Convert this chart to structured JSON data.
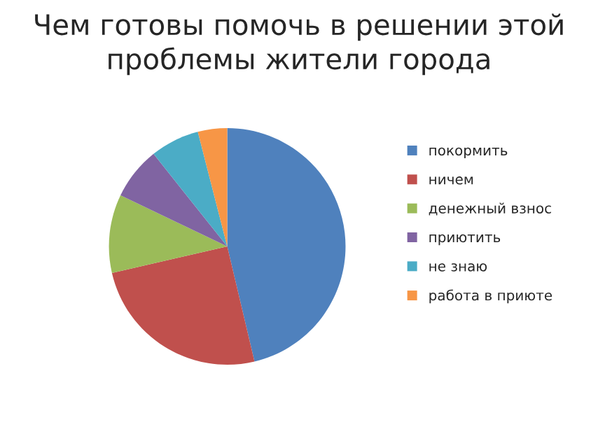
{
  "chart_data": {
    "type": "pie",
    "title": "Чем готовы помочь в решении этой\nпроблемы жители города",
    "categories": [
      "покормить",
      "ничем",
      "денежный взнос",
      "приютить",
      "не знаю",
      "работа в приюте"
    ],
    "values": [
      46.3,
      25.1,
      10.7,
      7.2,
      6.7,
      4.0
    ],
    "colors": [
      "#4f81bd",
      "#c0504d",
      "#9bbb59",
      "#8064a2",
      "#4bacc6",
      "#f79646"
    ],
    "legend": "right"
  }
}
